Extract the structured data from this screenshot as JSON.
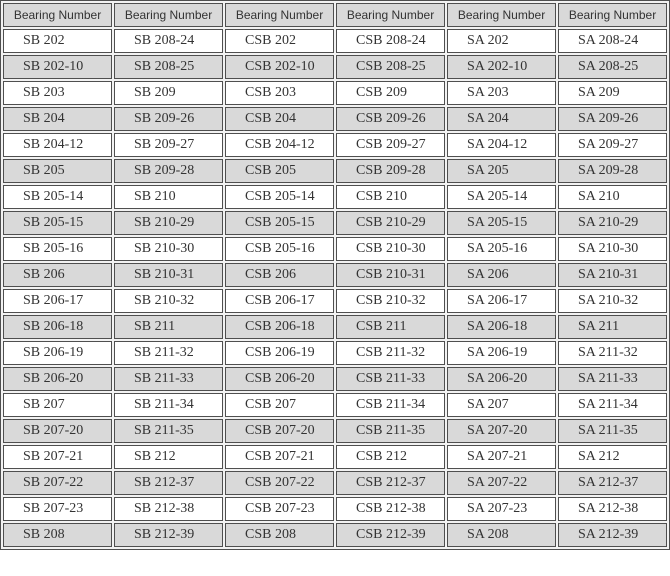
{
  "table": {
    "column_count": 6,
    "headers": [
      "Bearing Number",
      "Bearing Number",
      "Bearing Number",
      "Bearing Number",
      "Bearing Number",
      "Bearing Number"
    ],
    "rows": [
      [
        "SB 202",
        "SB 208-24",
        "CSB 202",
        "CSB 208-24",
        "SA 202",
        "SA 208-24"
      ],
      [
        "SB 202-10",
        "SB 208-25",
        "CSB 202-10",
        "CSB 208-25",
        "SA 202-10",
        "SA 208-25"
      ],
      [
        "SB 203",
        "SB 209",
        "CSB 203",
        "CSB 209",
        "SA 203",
        "SA 209"
      ],
      [
        "SB 204",
        "SB 209-26",
        "CSB 204",
        "CSB 209-26",
        "SA 204",
        "SA 209-26"
      ],
      [
        "SB 204-12",
        "SB 209-27",
        "CSB 204-12",
        "CSB 209-27",
        "SA 204-12",
        "SA 209-27"
      ],
      [
        "SB 205",
        "SB 209-28",
        "CSB 205",
        "CSB 209-28",
        "SA 205",
        "SA 209-28"
      ],
      [
        "SB 205-14",
        "SB 210",
        "CSB 205-14",
        "CSB 210",
        "SA 205-14",
        "SA 210"
      ],
      [
        "SB 205-15",
        "SB 210-29",
        "CSB 205-15",
        "CSB 210-29",
        "SA 205-15",
        "SA 210-29"
      ],
      [
        "SB 205-16",
        "SB 210-30",
        "CSB 205-16",
        "CSB 210-30",
        "SA 205-16",
        "SA 210-30"
      ],
      [
        "SB 206",
        "SB 210-31",
        "CSB 206",
        "CSB 210-31",
        "SA 206",
        "SA 210-31"
      ],
      [
        "SB 206-17",
        "SB 210-32",
        "CSB 206-17",
        "CSB 210-32",
        "SA 206-17",
        "SA 210-32"
      ],
      [
        "SB 206-18",
        "SB 211",
        "CSB 206-18",
        "CSB 211",
        "SA 206-18",
        "SA 211"
      ],
      [
        "SB 206-19",
        "SB 211-32",
        "CSB 206-19",
        "CSB 211-32",
        "SA 206-19",
        "SA 211-32"
      ],
      [
        "SB 206-20",
        "SB 211-33",
        "CSB 206-20",
        "CSB 211-33",
        "SA 206-20",
        "SA 211-33"
      ],
      [
        "SB 207",
        "SB 211-34",
        "CSB 207",
        "CSB 211-34",
        "SA 207",
        "SA 211-34"
      ],
      [
        "SB 207-20",
        "SB 211-35",
        "CSB 207-20",
        "CSB 211-35",
        "SA 207-20",
        "SA 211-35"
      ],
      [
        "SB 207-21",
        "SB 212",
        "CSB 207-21",
        "CSB 212",
        "SA 207-21",
        "SA 212"
      ],
      [
        "SB 207-22",
        "SB 212-37",
        "CSB 207-22",
        "CSB 212-37",
        "SA 207-22",
        "SA 212-37"
      ],
      [
        "SB 207-23",
        "SB 212-38",
        "CSB 207-23",
        "CSB 212-38",
        "SA 207-23",
        "SA 212-38"
      ],
      [
        "SB 208",
        "SB 212-39",
        "CSB 208",
        "CSB 212-39",
        "SA 208",
        "SA 212-39"
      ]
    ],
    "colors": {
      "header_bg": "#d9d9d9",
      "alt_row_bg": "#d9d9d9",
      "row_bg": "#ffffff",
      "border": "#4f4f4f",
      "text": "#333333"
    }
  }
}
